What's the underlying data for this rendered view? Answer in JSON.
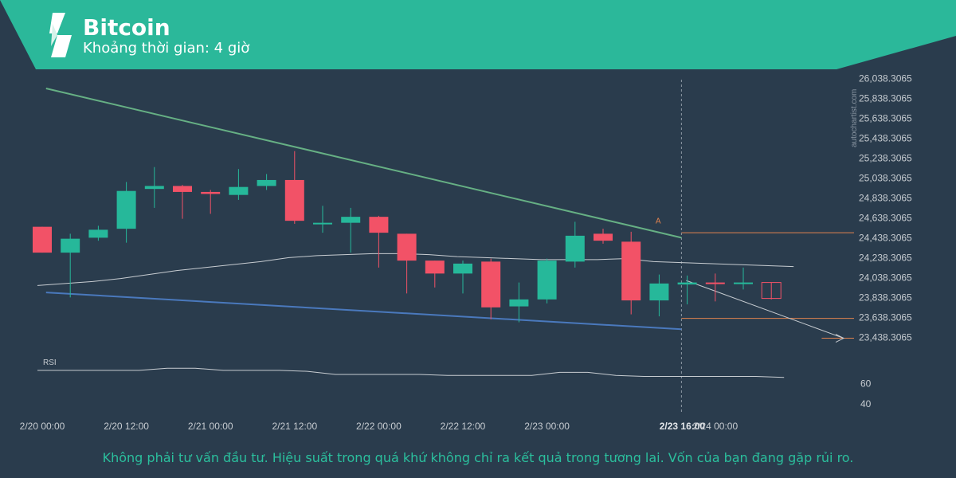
{
  "header": {
    "title": "Bitcoin",
    "subtitle": "Khoảng thời gian: 4 giờ",
    "banner_color": "#2bb89a",
    "logo": "autochartist-logo"
  },
  "watermark": "autochartist.com",
  "footer": "Không phải tư vấn đầu tư. Hiệu suất trong quá khứ không chỉ ra kết quả trong tương lai. Vốn của bạn đang gặp rủi ro.",
  "colors": {
    "background": "#2a3c4d",
    "bull": "#26b89a",
    "bear": "#f25267",
    "resistance_line": "#66b084",
    "support_line": "#4a79bd",
    "level_line": "#e2834f",
    "ma_line": "#c7ccd1",
    "axis_text": "#c7ccd1"
  },
  "chart_data": {
    "type": "candlestick",
    "y_ticks": [
      "26,038.3065",
      "25,838.3065",
      "25,638.3065",
      "25,438.3065",
      "25,238.3065",
      "25,038.3065",
      "24,838.3065",
      "24,638.3065",
      "24,438.3065",
      "24,238.3065",
      "24,038.3065",
      "23,838.3065",
      "23,638.3065",
      "23,438.3065"
    ],
    "ylim": [
      23338.3065,
      26088.3065
    ],
    "x_ticks": [
      {
        "label": "2/20 00:00",
        "index": 0
      },
      {
        "label": "2/20 12:00",
        "index": 3
      },
      {
        "label": "2/21 00:00",
        "index": 6
      },
      {
        "label": "2/21 12:00",
        "index": 9
      },
      {
        "label": "2/22 00:00",
        "index": 12
      },
      {
        "label": "2/22 12:00",
        "index": 15
      },
      {
        "label": "2/23 00:00",
        "index": 18
      },
      {
        "label": "2/23 16:00",
        "index": 22,
        "bold": true
      },
      {
        "label": "2/24 00:00",
        "index": 24
      }
    ],
    "candles": [
      {
        "o": 24550,
        "h": 24550,
        "l": 24290,
        "c": 24290
      },
      {
        "o": 24290,
        "h": 24480,
        "l": 23840,
        "c": 24430
      },
      {
        "o": 24440,
        "h": 24560,
        "l": 24410,
        "c": 24520
      },
      {
        "o": 24530,
        "h": 25000,
        "l": 24390,
        "c": 24910
      },
      {
        "o": 24930,
        "h": 25150,
        "l": 24740,
        "c": 24960
      },
      {
        "o": 24960,
        "h": 24970,
        "l": 24630,
        "c": 24900
      },
      {
        "o": 24900,
        "h": 24920,
        "l": 24680,
        "c": 24880
      },
      {
        "o": 24870,
        "h": 25130,
        "l": 24820,
        "c": 24950
      },
      {
        "o": 24960,
        "h": 25080,
        "l": 24920,
        "c": 25020
      },
      {
        "o": 25020,
        "h": 25310,
        "l": 24580,
        "c": 24610
      },
      {
        "o": 24590,
        "h": 24760,
        "l": 24490,
        "c": 24590
      },
      {
        "o": 24590,
        "h": 24740,
        "l": 24290,
        "c": 24650
      },
      {
        "o": 24650,
        "h": 24660,
        "l": 24140,
        "c": 24490
      },
      {
        "o": 24480,
        "h": 24480,
        "l": 23880,
        "c": 24210
      },
      {
        "o": 24210,
        "h": 24210,
        "l": 23940,
        "c": 24080
      },
      {
        "o": 24080,
        "h": 24210,
        "l": 23880,
        "c": 24180
      },
      {
        "o": 24200,
        "h": 24230,
        "l": 23620,
        "c": 23740
      },
      {
        "o": 23750,
        "h": 23990,
        "l": 23590,
        "c": 23820
      },
      {
        "o": 23820,
        "h": 24230,
        "l": 23780,
        "c": 24210
      },
      {
        "o": 24200,
        "h": 24600,
        "l": 24140,
        "c": 24460
      },
      {
        "o": 24480,
        "h": 24530,
        "l": 24380,
        "c": 24410
      },
      {
        "o": 24400,
        "h": 24500,
        "l": 23670,
        "c": 23810
      },
      {
        "o": 23810,
        "h": 24070,
        "l": 23650,
        "c": 23980
      },
      {
        "o": 23970,
        "h": 24060,
        "l": 23770,
        "c": 23990
      },
      {
        "o": 23990,
        "h": 24080,
        "l": 23800,
        "c": 23980
      },
      {
        "o": 23980,
        "h": 24140,
        "l": 23920,
        "c": 23990
      },
      {
        "o": 23990,
        "h": 23990,
        "l": 23820,
        "c": 23830
      }
    ],
    "moving_average": [
      23960,
      24000,
      24030,
      24070,
      24110,
      24140,
      24170,
      24200,
      24240,
      24260,
      24270,
      24280,
      24280,
      24270,
      24250,
      24240,
      24230,
      24220,
      24220,
      24220,
      24230,
      24200,
      24190,
      24180,
      24170,
      24160,
      24150
    ],
    "resistance_line": {
      "from": {
        "index": -1,
        "value": 25940
      },
      "to": {
        "index": 22,
        "value": 24440
      }
    },
    "support_line": {
      "from": {
        "index": -1,
        "value": 23890
      },
      "to": {
        "index": 22,
        "value": 23520
      }
    },
    "levels": [
      {
        "value": 24490,
        "from_index": 22,
        "to_index": 30
      },
      {
        "value": 23630,
        "from_index": 22,
        "to_index": 30
      },
      {
        "value": 23430,
        "from_index": 27,
        "to_index": 30
      }
    ],
    "projection_arrow": {
      "from": {
        "index": 22,
        "value": 24010
      },
      "to": {
        "index": 27.5,
        "value": 23430
      }
    },
    "annotation": {
      "text": "A",
      "index": 21,
      "value": 24520
    },
    "current_time_index": 22,
    "rsi": {
      "label": "RSI",
      "y_ticks": [
        "60",
        "40"
      ],
      "ylim": [
        30,
        90
      ],
      "values": [
        73,
        73,
        73,
        73,
        75,
        75,
        73,
        73,
        73,
        72,
        69,
        69,
        69,
        69,
        68,
        68,
        68,
        68,
        71,
        71,
        68,
        67,
        67,
        67,
        67,
        67,
        66
      ]
    }
  }
}
